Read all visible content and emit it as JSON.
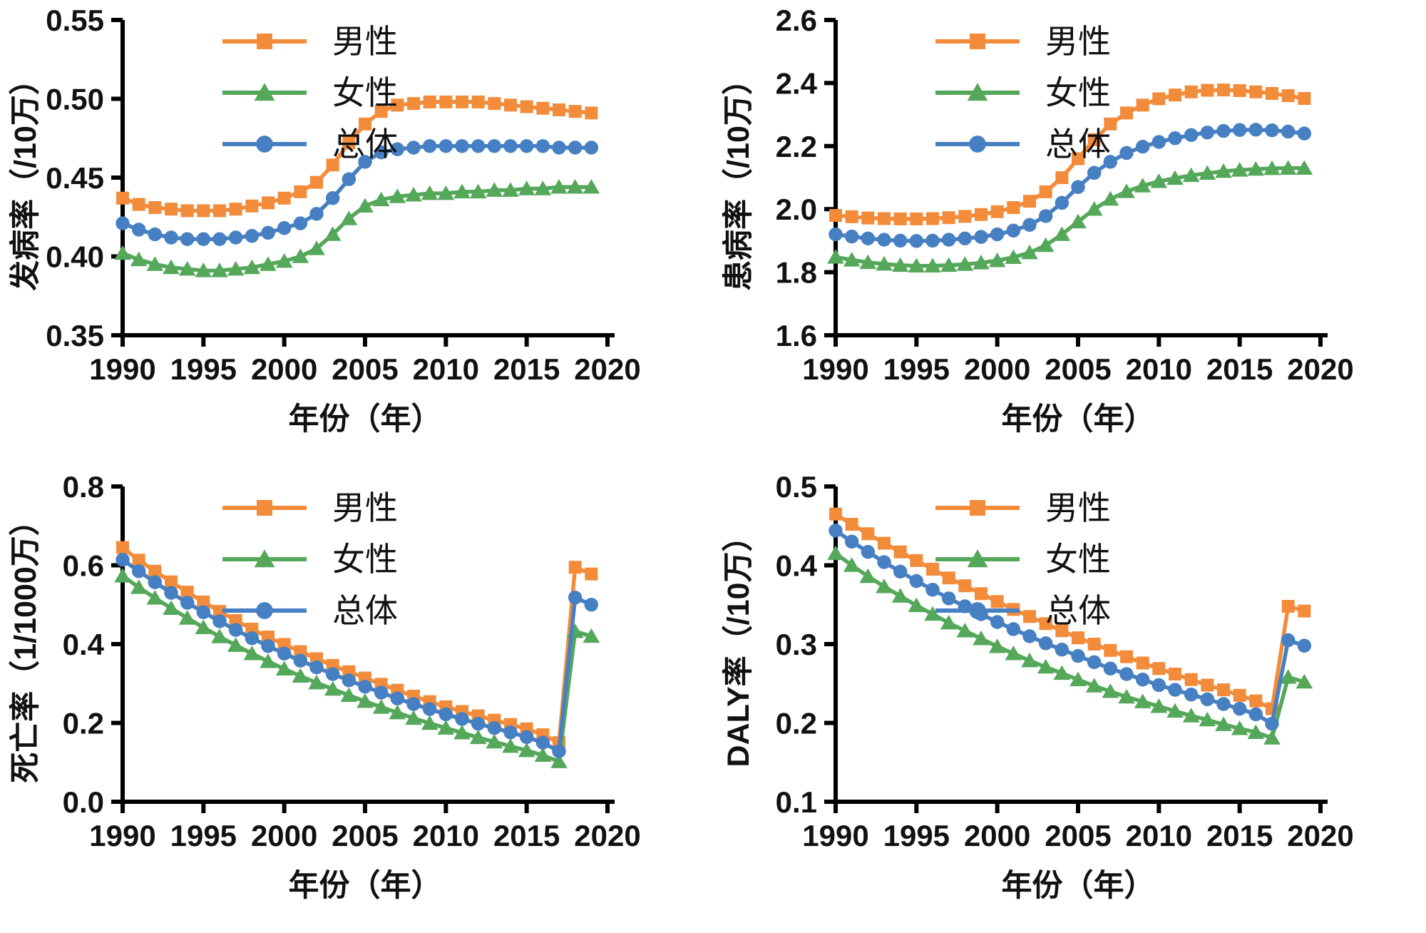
{
  "figure": {
    "background": "#ffffff",
    "axis_color": "#000000"
  },
  "colors": {
    "male": "#F28C3B",
    "female": "#55A85A",
    "overall": "#4680C2"
  },
  "legend": [
    {
      "key": "male",
      "label": "男性",
      "marker": "square"
    },
    {
      "key": "female",
      "label": "女性",
      "marker": "triangle"
    },
    {
      "key": "overall",
      "label": "总体",
      "marker": "circle"
    }
  ],
  "chart_data": [
    {
      "id": "incidence",
      "type": "line",
      "title": "",
      "ylabel": "发病率（/10万）",
      "xlabel": "年份（年）",
      "ylim": [
        0.35,
        0.55
      ],
      "xlim": [
        1990,
        2020
      ],
      "grid": false,
      "legend_position": "top-center-inside",
      "ytick_labels": [
        "0.35",
        "0.40",
        "0.45",
        "0.50",
        "0.55"
      ],
      "yticks": [
        0.35,
        0.4,
        0.45,
        0.5,
        0.55
      ],
      "xticks": [
        1990,
        1995,
        2000,
        2005,
        2010,
        2015,
        2020
      ],
      "x": [
        1990,
        1991,
        1992,
        1993,
        1994,
        1995,
        1996,
        1997,
        1998,
        1999,
        2000,
        2001,
        2002,
        2003,
        2004,
        2005,
        2006,
        2007,
        2008,
        2009,
        2010,
        2011,
        2012,
        2013,
        2014,
        2015,
        2016,
        2017,
        2018,
        2019
      ],
      "series": [
        {
          "key": "male",
          "name": "男性",
          "marker": "square",
          "values": [
            0.437,
            0.433,
            0.431,
            0.43,
            0.429,
            0.429,
            0.429,
            0.43,
            0.432,
            0.434,
            0.437,
            0.441,
            0.447,
            0.458,
            0.472,
            0.484,
            0.492,
            0.496,
            0.497,
            0.498,
            0.498,
            0.498,
            0.498,
            0.497,
            0.496,
            0.495,
            0.494,
            0.493,
            0.492,
            0.491
          ]
        },
        {
          "key": "female",
          "name": "女性",
          "marker": "triangle",
          "values": [
            0.402,
            0.398,
            0.395,
            0.393,
            0.392,
            0.391,
            0.391,
            0.392,
            0.393,
            0.395,
            0.397,
            0.4,
            0.405,
            0.414,
            0.424,
            0.432,
            0.436,
            0.438,
            0.439,
            0.44,
            0.44,
            0.441,
            0.441,
            0.442,
            0.442,
            0.443,
            0.443,
            0.444,
            0.444,
            0.444
          ]
        },
        {
          "key": "overall",
          "name": "总体",
          "marker": "circle",
          "values": [
            0.421,
            0.417,
            0.414,
            0.412,
            0.411,
            0.411,
            0.411,
            0.412,
            0.413,
            0.415,
            0.418,
            0.421,
            0.427,
            0.437,
            0.449,
            0.46,
            0.466,
            0.468,
            0.469,
            0.47,
            0.47,
            0.47,
            0.47,
            0.47,
            0.47,
            0.47,
            0.47,
            0.469,
            0.469,
            0.469
          ]
        }
      ]
    },
    {
      "id": "prevalence",
      "type": "line",
      "title": "",
      "ylabel": "患病率（/10万）",
      "xlabel": "年份（年）",
      "ylim": [
        1.6,
        2.6
      ],
      "xlim": [
        1990,
        2020
      ],
      "grid": false,
      "legend_position": "top-center-inside",
      "ytick_labels": [
        "1.6",
        "1.8",
        "2.0",
        "2.2",
        "2.4",
        "2.6"
      ],
      "yticks": [
        1.6,
        1.8,
        2.0,
        2.2,
        2.4,
        2.6
      ],
      "xticks": [
        1990,
        1995,
        2000,
        2005,
        2010,
        2015,
        2020
      ],
      "x": [
        1990,
        1991,
        1992,
        1993,
        1994,
        1995,
        1996,
        1997,
        1998,
        1999,
        2000,
        2001,
        2002,
        2003,
        2004,
        2005,
        2006,
        2007,
        2008,
        2009,
        2010,
        2011,
        2012,
        2013,
        2014,
        2015,
        2016,
        2017,
        2018,
        2019
      ],
      "series": [
        {
          "key": "male",
          "name": "男性",
          "marker": "square",
          "values": [
            1.98,
            1.976,
            1.972,
            1.97,
            1.969,
            1.969,
            1.97,
            1.973,
            1.977,
            1.983,
            1.992,
            2.005,
            2.025,
            2.055,
            2.1,
            2.16,
            2.22,
            2.27,
            2.305,
            2.33,
            2.35,
            2.362,
            2.372,
            2.377,
            2.378,
            2.376,
            2.372,
            2.367,
            2.36,
            2.351
          ]
        },
        {
          "key": "female",
          "name": "女性",
          "marker": "triangle",
          "values": [
            1.848,
            1.839,
            1.831,
            1.826,
            1.822,
            1.82,
            1.82,
            1.822,
            1.825,
            1.83,
            1.837,
            1.847,
            1.862,
            1.885,
            1.92,
            1.96,
            2.0,
            2.032,
            2.056,
            2.074,
            2.088,
            2.098,
            2.107,
            2.114,
            2.12,
            2.124,
            2.127,
            2.129,
            2.13,
            2.13
          ]
        },
        {
          "key": "overall",
          "name": "总体",
          "marker": "circle",
          "values": [
            1.92,
            1.913,
            1.907,
            1.903,
            1.9,
            1.899,
            1.9,
            1.903,
            1.907,
            1.912,
            1.92,
            1.932,
            1.95,
            1.978,
            2.02,
            2.07,
            2.115,
            2.15,
            2.178,
            2.198,
            2.213,
            2.225,
            2.235,
            2.243,
            2.248,
            2.251,
            2.252,
            2.25,
            2.246,
            2.24
          ]
        }
      ]
    },
    {
      "id": "mortality",
      "type": "line",
      "title": "",
      "ylabel": "死亡率（1/1000万）",
      "xlabel": "年份（年）",
      "ylim": [
        0.0,
        0.8
      ],
      "xlim": [
        1990,
        2020
      ],
      "grid": false,
      "legend_position": "top-center-inside",
      "ytick_labels": [
        "0.0",
        "0.2",
        "0.4",
        "0.6",
        "0.8"
      ],
      "yticks": [
        0.0,
        0.2,
        0.4,
        0.6,
        0.8
      ],
      "xticks": [
        1990,
        1995,
        2000,
        2005,
        2010,
        2015,
        2020
      ],
      "x": [
        1990,
        1991,
        1992,
        1993,
        1994,
        1995,
        1996,
        1997,
        1998,
        1999,
        2000,
        2001,
        2002,
        2003,
        2004,
        2005,
        2006,
        2007,
        2008,
        2009,
        2010,
        2011,
        2012,
        2013,
        2014,
        2015,
        2016,
        2017,
        2018,
        2019
      ],
      "series": [
        {
          "key": "male",
          "name": "男性",
          "marker": "square",
          "values": [
            0.645,
            0.613,
            0.585,
            0.558,
            0.532,
            0.507,
            0.483,
            0.46,
            0.438,
            0.418,
            0.399,
            0.381,
            0.363,
            0.346,
            0.33,
            0.314,
            0.298,
            0.283,
            0.268,
            0.254,
            0.241,
            0.229,
            0.218,
            0.207,
            0.196,
            0.185,
            0.17,
            0.15,
            0.595,
            0.578
          ]
        },
        {
          "key": "female",
          "name": "女性",
          "marker": "triangle",
          "values": [
            0.573,
            0.544,
            0.517,
            0.491,
            0.466,
            0.442,
            0.419,
            0.397,
            0.376,
            0.356,
            0.337,
            0.319,
            0.302,
            0.286,
            0.27,
            0.255,
            0.24,
            0.226,
            0.212,
            0.199,
            0.187,
            0.175,
            0.163,
            0.152,
            0.141,
            0.13,
            0.118,
            0.102,
            0.432,
            0.42
          ]
        },
        {
          "key": "overall",
          "name": "总体",
          "marker": "circle",
          "values": [
            0.614,
            0.585,
            0.557,
            0.53,
            0.505,
            0.481,
            0.458,
            0.436,
            0.415,
            0.395,
            0.376,
            0.358,
            0.341,
            0.324,
            0.308,
            0.292,
            0.277,
            0.262,
            0.248,
            0.235,
            0.222,
            0.21,
            0.198,
            0.187,
            0.176,
            0.164,
            0.15,
            0.128,
            0.518,
            0.5
          ]
        }
      ]
    },
    {
      "id": "daly",
      "type": "line",
      "title": "",
      "ylabel": "DALY率（/10万）",
      "xlabel": "年份（年）",
      "ylim": [
        0.1,
        0.5
      ],
      "xlim": [
        1990,
        2020
      ],
      "grid": false,
      "legend_position": "top-center-inside",
      "ytick_labels": [
        "0.1",
        "0.2",
        "0.3",
        "0.4",
        "0.5"
      ],
      "yticks": [
        0.1,
        0.2,
        0.3,
        0.4,
        0.5
      ],
      "xticks": [
        1990,
        1995,
        2000,
        2005,
        2010,
        2015,
        2020
      ],
      "x": [
        1990,
        1991,
        1992,
        1993,
        1994,
        1995,
        1996,
        1997,
        1998,
        1999,
        2000,
        2001,
        2002,
        2003,
        2004,
        2005,
        2006,
        2007,
        2008,
        2009,
        2010,
        2011,
        2012,
        2013,
        2014,
        2015,
        2016,
        2017,
        2018,
        2019
      ],
      "series": [
        {
          "key": "male",
          "name": "男性",
          "marker": "square",
          "values": [
            0.465,
            0.452,
            0.44,
            0.428,
            0.417,
            0.406,
            0.395,
            0.384,
            0.374,
            0.364,
            0.354,
            0.344,
            0.335,
            0.326,
            0.317,
            0.308,
            0.3,
            0.292,
            0.284,
            0.276,
            0.269,
            0.262,
            0.255,
            0.248,
            0.242,
            0.235,
            0.228,
            0.218,
            0.348,
            0.342
          ]
        },
        {
          "key": "female",
          "name": "女性",
          "marker": "triangle",
          "values": [
            0.415,
            0.4,
            0.386,
            0.373,
            0.361,
            0.349,
            0.338,
            0.327,
            0.317,
            0.307,
            0.297,
            0.288,
            0.279,
            0.271,
            0.263,
            0.255,
            0.247,
            0.24,
            0.233,
            0.227,
            0.221,
            0.215,
            0.209,
            0.204,
            0.198,
            0.193,
            0.188,
            0.181,
            0.258,
            0.252
          ]
        },
        {
          "key": "overall",
          "name": "总体",
          "marker": "circle",
          "values": [
            0.444,
            0.43,
            0.417,
            0.404,
            0.392,
            0.38,
            0.369,
            0.358,
            0.348,
            0.338,
            0.328,
            0.319,
            0.31,
            0.301,
            0.293,
            0.285,
            0.277,
            0.269,
            0.262,
            0.255,
            0.248,
            0.242,
            0.236,
            0.23,
            0.224,
            0.218,
            0.211,
            0.199,
            0.305,
            0.298
          ]
        }
      ]
    }
  ]
}
